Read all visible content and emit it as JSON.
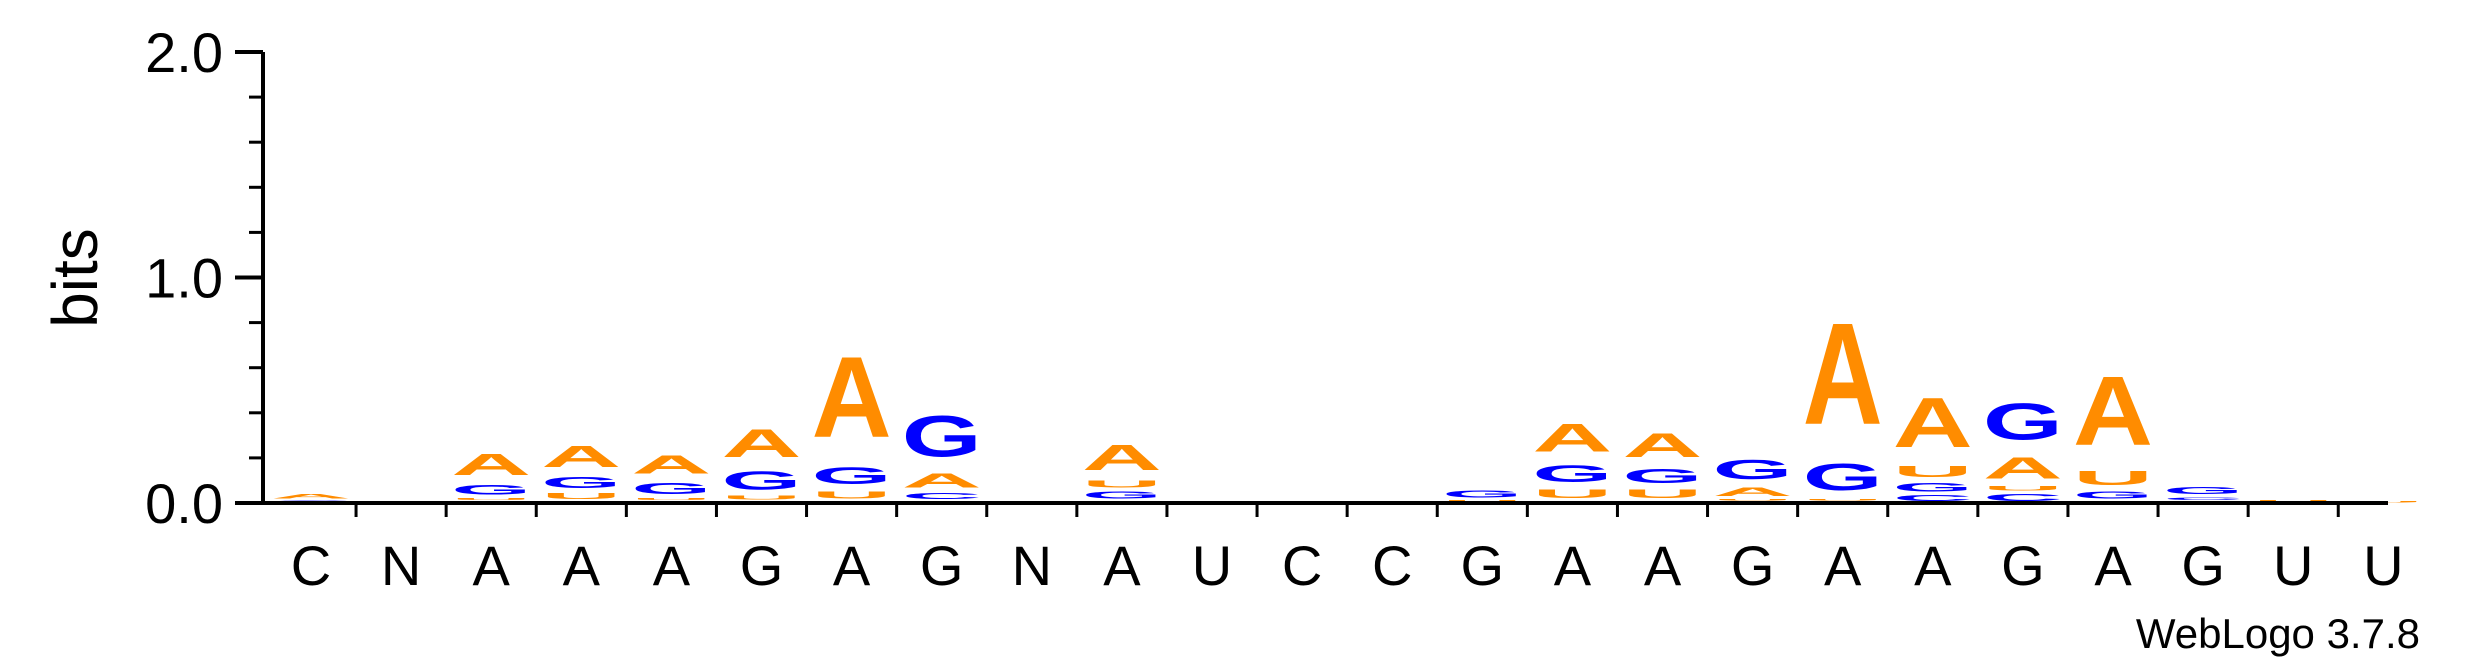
{
  "chart_data": {
    "type": "sequence-logo",
    "title": "",
    "ylabel": "bits",
    "xlabel": "",
    "ylim": [
      0,
      2.0
    ],
    "yticks": [
      {
        "value": 0.0,
        "label": "0.0"
      },
      {
        "value": 1.0,
        "label": "1.0"
      },
      {
        "value": 2.0,
        "label": "2.0"
      }
    ],
    "colors": {
      "A": "#ff8c00",
      "G": "#0000ff",
      "C": "#0000ff",
      "U": "#ff8c00"
    },
    "positions": [
      {
        "label": "C",
        "stack": [
          {
            "letter": "C",
            "bits": 0.015
          },
          {
            "letter": "A",
            "bits": 0.03
          }
        ]
      },
      {
        "label": "N",
        "stack": []
      },
      {
        "label": "A",
        "stack": [
          {
            "letter": "C",
            "bits": 0.01
          },
          {
            "letter": "U",
            "bits": 0.015
          },
          {
            "letter": "G",
            "bits": 0.07
          },
          {
            "letter": "A",
            "bits": 0.15
          }
        ]
      },
      {
        "label": "A",
        "stack": [
          {
            "letter": "C",
            "bits": 0.01
          },
          {
            "letter": "U",
            "bits": 0.04
          },
          {
            "letter": "G",
            "bits": 0.08
          },
          {
            "letter": "A",
            "bits": 0.15
          }
        ]
      },
      {
        "label": "A",
        "stack": [
          {
            "letter": "C",
            "bits": 0.01
          },
          {
            "letter": "U",
            "bits": 0.015
          },
          {
            "letter": "G",
            "bits": 0.08
          },
          {
            "letter": "A",
            "bits": 0.13
          }
        ]
      },
      {
        "label": "G",
        "stack": [
          {
            "letter": "C",
            "bits": 0.01
          },
          {
            "letter": "U",
            "bits": 0.025
          },
          {
            "letter": "G",
            "bits": 0.13
          },
          {
            "letter": "A",
            "bits": 0.2
          }
        ]
      },
      {
        "label": "A",
        "stack": [
          {
            "letter": "C",
            "bits": 0.01
          },
          {
            "letter": "U",
            "bits": 0.05
          },
          {
            "letter": "G",
            "bits": 0.12
          },
          {
            "letter": "A",
            "bits": 0.57
          }
        ]
      },
      {
        "label": "G",
        "stack": [
          {
            "letter": "U",
            "bits": 0.01
          },
          {
            "letter": "C",
            "bits": 0.04
          },
          {
            "letter": "A",
            "bits": 0.1
          },
          {
            "letter": "G",
            "bits": 0.29
          }
        ]
      },
      {
        "label": "N",
        "stack": []
      },
      {
        "label": "A",
        "stack": [
          {
            "letter": "C",
            "bits": 0.01
          },
          {
            "letter": "G",
            "bits": 0.05
          },
          {
            "letter": "U",
            "bits": 0.05
          },
          {
            "letter": "A",
            "bits": 0.18
          }
        ]
      },
      {
        "label": "U",
        "stack": []
      },
      {
        "label": "C",
        "stack": []
      },
      {
        "label": "C",
        "stack": []
      },
      {
        "label": "G",
        "stack": [
          {
            "letter": "C",
            "bits": 0.005
          },
          {
            "letter": "U",
            "bits": 0.01
          },
          {
            "letter": "G",
            "bits": 0.05
          }
        ]
      },
      {
        "label": "A",
        "stack": [
          {
            "letter": "C",
            "bits": 0.01
          },
          {
            "letter": "U",
            "bits": 0.06
          },
          {
            "letter": "G",
            "bits": 0.12
          },
          {
            "letter": "A",
            "bits": 0.2
          }
        ]
      },
      {
        "label": "A",
        "stack": [
          {
            "letter": "C",
            "bits": 0.01
          },
          {
            "letter": "U",
            "bits": 0.06
          },
          {
            "letter": "G",
            "bits": 0.1
          },
          {
            "letter": "A",
            "bits": 0.17
          }
        ]
      },
      {
        "label": "G",
        "stack": [
          {
            "letter": "C",
            "bits": 0.01
          },
          {
            "letter": "U",
            "bits": 0.01
          },
          {
            "letter": "A",
            "bits": 0.06
          },
          {
            "letter": "G",
            "bits": 0.14
          }
        ]
      },
      {
        "label": "A",
        "stack": [
          {
            "letter": "C",
            "bits": 0.01
          },
          {
            "letter": "U",
            "bits": 0.01
          },
          {
            "letter": "G",
            "bits": 0.19
          },
          {
            "letter": "A",
            "bits": 0.72
          }
        ]
      },
      {
        "label": "A",
        "stack": [
          {
            "letter": "C",
            "bits": 0.04
          },
          {
            "letter": "G",
            "bits": 0.06
          },
          {
            "letter": "U",
            "bits": 0.08
          },
          {
            "letter": "A",
            "bits": 0.35
          }
        ]
      },
      {
        "label": "G",
        "stack": [
          {
            "letter": "C",
            "bits": 0.05
          },
          {
            "letter": "U",
            "bits": 0.03
          },
          {
            "letter": "A",
            "bits": 0.15
          },
          {
            "letter": "G",
            "bits": 0.26
          }
        ]
      },
      {
        "label": "A",
        "stack": [
          {
            "letter": "C",
            "bits": 0.01
          },
          {
            "letter": "G",
            "bits": 0.05
          },
          {
            "letter": "U",
            "bits": 0.1
          },
          {
            "letter": "A",
            "bits": 0.49
          }
        ]
      },
      {
        "label": "G",
        "stack": [
          {
            "letter": "A",
            "bits": 0.01
          },
          {
            "letter": "C",
            "bits": 0.02
          },
          {
            "letter": "G",
            "bits": 0.05
          }
        ]
      },
      {
        "label": "U",
        "stack": [
          {
            "letter": "A",
            "bits": 0.005
          },
          {
            "letter": "U",
            "bits": 0.01
          }
        ]
      },
      {
        "label": "U",
        "stack": [
          {
            "letter": "U",
            "bits": 0.01
          }
        ]
      }
    ]
  },
  "footer": {
    "credit": "WebLogo 3.7.8"
  }
}
